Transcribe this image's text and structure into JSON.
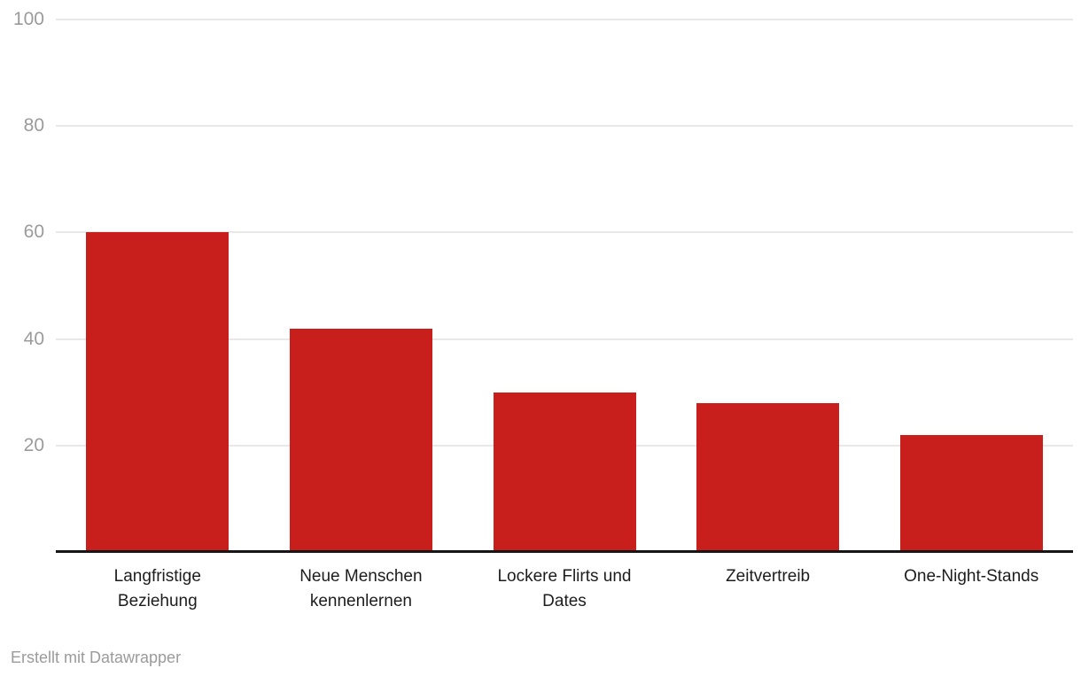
{
  "chart_data": {
    "type": "bar",
    "categories": [
      "Langfristige Beziehung",
      "Neue Menschen kennenlernen",
      "Lockere Flirts und Dates",
      "Zeitvertreib",
      "One-Night-Stands"
    ],
    "values": [
      60,
      42,
      30,
      28,
      22
    ],
    "title": "",
    "xlabel": "",
    "ylabel": "",
    "ylim": [
      0,
      100
    ],
    "yticks": [
      20,
      40,
      60,
      80,
      100
    ],
    "grid": true,
    "legend": "none",
    "bar_color": "#c81f1d",
    "gridline_color": "#e8e8e8",
    "baseline_color": "#161616",
    "y_tick_label_color": "#9b9b9b",
    "category_label_color": "#1d1d1d"
  },
  "footer": {
    "text": "Erstellt mit Datawrapper"
  }
}
